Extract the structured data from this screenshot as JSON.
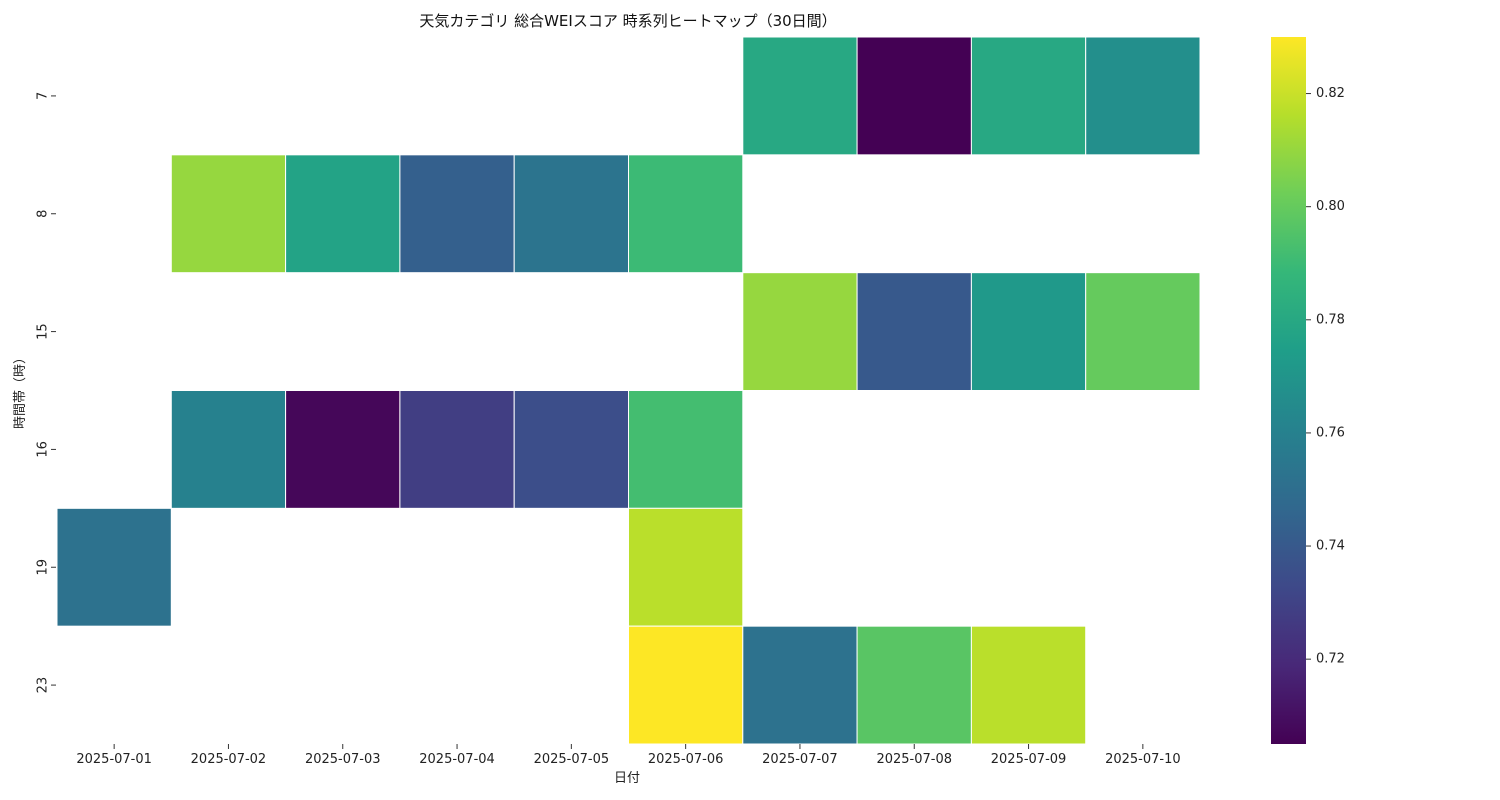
{
  "chart_data": {
    "type": "heatmap",
    "title": "天気カテゴリ 総合WEIスコア 時系列ヒートマップ（30日間）",
    "xlabel": "日付",
    "ylabel": "時間帯（時）",
    "x": [
      "2025-07-01",
      "2025-07-02",
      "2025-07-03",
      "2025-07-04",
      "2025-07-05",
      "2025-07-06",
      "2025-07-07",
      "2025-07-08",
      "2025-07-09",
      "2025-07-10"
    ],
    "y": [
      "7",
      "8",
      "15",
      "16",
      "19",
      "23"
    ],
    "values": [
      [
        null,
        null,
        null,
        null,
        null,
        null,
        0.78,
        0.705,
        0.78,
        0.767
      ],
      [
        null,
        0.81,
        0.777,
        0.743,
        0.753,
        0.79,
        null,
        null,
        null,
        null
      ],
      [
        null,
        null,
        null,
        null,
        null,
        null,
        0.81,
        0.74,
        0.772,
        0.8
      ],
      [
        null,
        0.76,
        0.707,
        0.728,
        0.735,
        0.792,
        null,
        null,
        null,
        null
      ],
      [
        0.752,
        null,
        null,
        null,
        null,
        0.817,
        null,
        null,
        null,
        null
      ],
      [
        null,
        null,
        null,
        null,
        null,
        0.83,
        0.752,
        0.797,
        0.817,
        null
      ]
    ],
    "colorbar": {
      "colormap": "viridis",
      "range": [
        0.705,
        0.83
      ],
      "ticks": [
        "0.72",
        "0.74",
        "0.76",
        "0.78",
        "0.80",
        "0.82"
      ]
    }
  }
}
